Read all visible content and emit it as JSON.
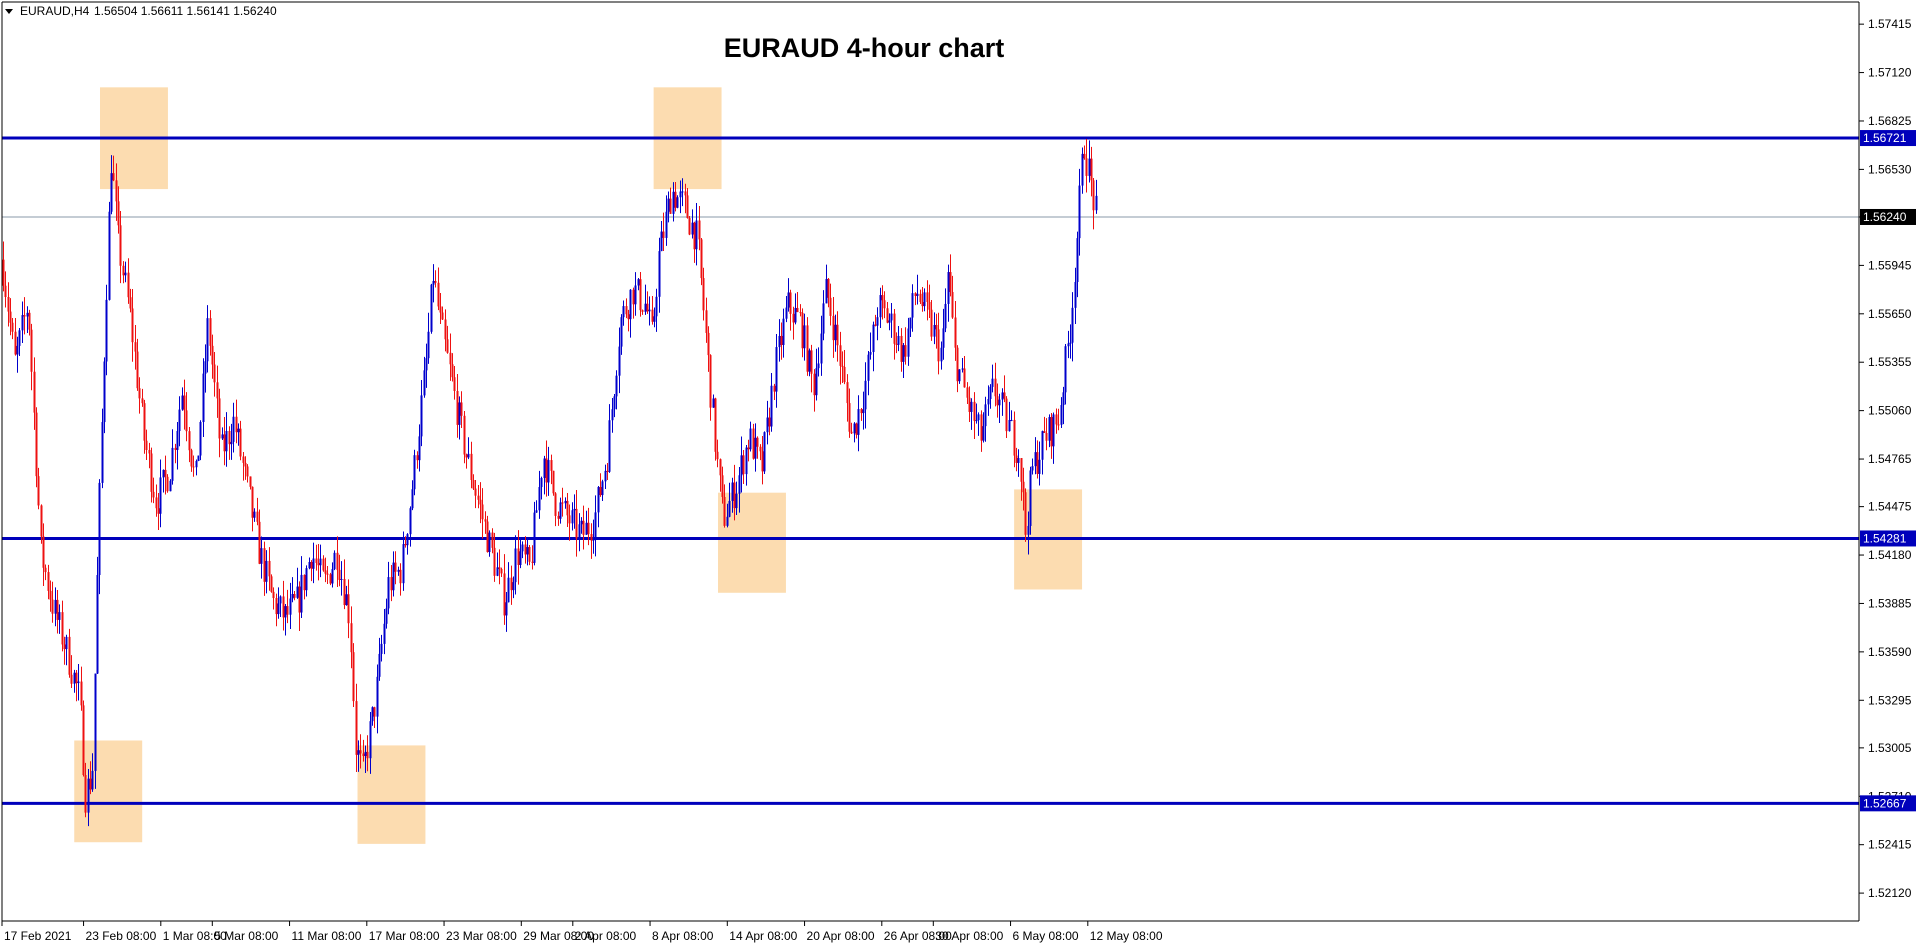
{
  "header": {
    "symbol": "EURAUD,H4",
    "ohlc": "1.56504 1.56611 1.56141 1.56240"
  },
  "colors": {
    "bull": "#0000cc",
    "bear": "#ee1111",
    "level_line": "#0000bb",
    "zone": "#fcdcb0",
    "current_line": "#8899aa",
    "axis": "#000000"
  },
  "chart_data": {
    "type": "candlestick",
    "title": "EURAUD 4-hour chart",
    "ylim": [
      1.5195,
      1.5755
    ],
    "y_ticks": [
      "1.57415",
      "1.57120",
      "1.56825",
      "1.56530",
      "1.56240",
      "1.55945",
      "1.55650",
      "1.55355",
      "1.55060",
      "1.54765",
      "1.54475",
      "1.54180",
      "1.53885",
      "1.53590",
      "1.53295",
      "1.53005",
      "1.52710",
      "1.52415",
      "1.52120"
    ],
    "x_ticks": [
      "17 Feb 2021",
      "23 Feb 08:00",
      "1 Mar 08:00",
      "5 Mar 08:00",
      "11 Mar 08:00",
      "17 Mar 08:00",
      "23 Mar 08:00",
      "29 Mar 08:00",
      "2 Apr 08:00",
      "8 Apr 08:00",
      "14 Apr 08:00",
      "20 Apr 08:00",
      "26 Apr 08:00",
      "30 Apr 08:00",
      "6 May 08:00",
      "12 May 08:00"
    ],
    "levels": [
      {
        "value": "1.56721",
        "label": "1.56721"
      },
      {
        "value": "1.54281",
        "label": "1.54281"
      },
      {
        "value": "1.52667",
        "label": "1.52667"
      }
    ],
    "current_price": {
      "value": "1.56240",
      "label": "1.56240"
    },
    "zones": [
      {
        "from": "23 Feb 2021",
        "to": "24 Feb 2021",
        "low": 1.5243,
        "high": 1.5305
      },
      {
        "from": "25 Feb 2021",
        "to": "26 Feb 2021",
        "low": 1.5641,
        "high": 1.5703
      },
      {
        "from": "17 Mar 2021",
        "to": "18 Mar 2021",
        "low": 1.5242,
        "high": 1.5302
      },
      {
        "from": "9 Apr 2021",
        "to": "10 Apr 2021",
        "low": 1.5641,
        "high": 1.5703
      },
      {
        "from": "14 Apr 2021",
        "to": "15 Apr 2021",
        "low": 1.5395,
        "high": 1.5456
      },
      {
        "from": "7 May 2021",
        "to": "8 May 2021",
        "low": 1.5397,
        "high": 1.5458
      }
    ],
    "close_path": [
      {
        "date": "17 Feb 2021",
        "close": 1.5598
      },
      {
        "date": "18 Feb 2021",
        "close": 1.5535
      },
      {
        "date": "19 Feb 2021",
        "close": 1.5572
      },
      {
        "date": "20 Feb 2021",
        "close": 1.542
      },
      {
        "date": "21 Feb 2021",
        "close": 1.5385
      },
      {
        "date": "22 Feb 2021",
        "close": 1.536
      },
      {
        "date": "23 Feb 2021",
        "close": 1.533
      },
      {
        "date": "23 Feb 2021",
        "close": 1.5272
      },
      {
        "date": "24 Feb 2021",
        "close": 1.5285
      },
      {
        "date": "24 Feb 2021",
        "close": 1.543
      },
      {
        "date": "25 Feb 2021",
        "close": 1.556
      },
      {
        "date": "25 Feb 2021",
        "close": 1.566
      },
      {
        "date": "26 Feb 2021",
        "close": 1.561
      },
      {
        "date": "27 Feb 2021",
        "close": 1.556
      },
      {
        "date": "28 Feb 2021",
        "close": 1.549
      },
      {
        "date": "1 Mar 2021",
        "close": 1.545
      },
      {
        "date": "2 Mar 2021",
        "close": 1.547
      },
      {
        "date": "3 Mar 2021",
        "close": 1.552
      },
      {
        "date": "4 Mar 2021",
        "close": 1.546
      },
      {
        "date": "5 Mar 2021",
        "close": 1.556
      },
      {
        "date": "6 Mar 2021",
        "close": 1.548
      },
      {
        "date": "7 Mar 2021",
        "close": 1.55
      },
      {
        "date": "8 Mar 2021",
        "close": 1.546
      },
      {
        "date": "9 Mar 2021",
        "close": 1.542
      },
      {
        "date": "10 Mar 2021",
        "close": 1.539
      },
      {
        "date": "11 Mar 2021",
        "close": 1.538
      },
      {
        "date": "12 Mar 2021",
        "close": 1.539
      },
      {
        "date": "13 Mar 2021",
        "close": 1.542
      },
      {
        "date": "14 Mar 2021",
        "close": 1.54
      },
      {
        "date": "15 Mar 2021",
        "close": 1.542
      },
      {
        "date": "16 Mar 2021",
        "close": 1.538
      },
      {
        "date": "16 Mar 2021",
        "close": 1.53
      },
      {
        "date": "17 Mar 2021",
        "close": 1.5285
      },
      {
        "date": "18 Mar 2021",
        "close": 1.533
      },
      {
        "date": "19 Mar 2021",
        "close": 1.54
      },
      {
        "date": "20 Mar 2021",
        "close": 1.541
      },
      {
        "date": "21 Mar 2021",
        "close": 1.547
      },
      {
        "date": "22 Mar 2021",
        "close": 1.554
      },
      {
        "date": "22 Mar 2021",
        "close": 1.559
      },
      {
        "date": "23 Mar 2021",
        "close": 1.556
      },
      {
        "date": "24 Mar 2021",
        "close": 1.552
      },
      {
        "date": "25 Mar 2021",
        "close": 1.548
      },
      {
        "date": "26 Mar 2021",
        "close": 1.545
      },
      {
        "date": "27 Mar 2021",
        "close": 1.542
      },
      {
        "date": "28 Mar 2021",
        "close": 1.539
      },
      {
        "date": "29 Mar 2021",
        "close": 1.542
      },
      {
        "date": "30 Mar 2021",
        "close": 1.541
      },
      {
        "date": "31 Mar 2021",
        "close": 1.548
      },
      {
        "date": "1 Apr 2021",
        "close": 1.545
      },
      {
        "date": "2 Apr 2021",
        "close": 1.544
      },
      {
        "date": "3 Apr 2021",
        "close": 1.543
      },
      {
        "date": "4 Apr 2021",
        "close": 1.544
      },
      {
        "date": "5 Apr 2021",
        "close": 1.548
      },
      {
        "date": "6 Apr 2021",
        "close": 1.556
      },
      {
        "date": "7 Apr 2021",
        "close": 1.558
      },
      {
        "date": "8 Apr 2021",
        "close": 1.557
      },
      {
        "date": "8 Apr 2021",
        "close": 1.555
      },
      {
        "date": "9 Apr 2021",
        "close": 1.56
      },
      {
        "date": "10 Apr 2021",
        "close": 1.564
      },
      {
        "date": "11 Apr 2021",
        "close": 1.563
      },
      {
        "date": "12 Apr 2021",
        "close": 1.561
      },
      {
        "date": "13 Apr 2021",
        "close": 1.552
      },
      {
        "date": "13 Apr 2021",
        "close": 1.548
      },
      {
        "date": "14 Apr 2021",
        "close": 1.544
      },
      {
        "date": "15 Apr 2021",
        "close": 1.546
      },
      {
        "date": "16 Apr 2021",
        "close": 1.549
      },
      {
        "date": "17 Apr 2021",
        "close": 1.547
      },
      {
        "date": "18 Apr 2021",
        "close": 1.553
      },
      {
        "date": "19 Apr 2021",
        "close": 1.557
      },
      {
        "date": "20 Apr 2021",
        "close": 1.556
      },
      {
        "date": "21 Apr 2021",
        "close": 1.552
      },
      {
        "date": "22 Apr 2021",
        "close": 1.558
      },
      {
        "date": "23 Apr 2021",
        "close": 1.554
      },
      {
        "date": "24 Apr 2021",
        "close": 1.549
      },
      {
        "date": "25 Apr 2021",
        "close": 1.552
      },
      {
        "date": "26 Apr 2021",
        "close": 1.557
      },
      {
        "date": "27 Apr 2021",
        "close": 1.556
      },
      {
        "date": "28 Apr 2021",
        "close": 1.554
      },
      {
        "date": "29 Apr 2021",
        "close": 1.558
      },
      {
        "date": "30 Apr 2021",
        "close": 1.556
      },
      {
        "date": "1 May 2021",
        "close": 1.554
      },
      {
        "date": "1 May 2021",
        "close": 1.559
      },
      {
        "date": "2 May 2021",
        "close": 1.554
      },
      {
        "date": "3 May 2021",
        "close": 1.551
      },
      {
        "date": "4 May 2021",
        "close": 1.549
      },
      {
        "date": "5 May 2021",
        "close": 1.552
      },
      {
        "date": "6 May 2021",
        "close": 1.55
      },
      {
        "date": "7 May 2021",
        "close": 1.548
      },
      {
        "date": "7 May 2021",
        "close": 1.5432
      },
      {
        "date": "8 May 2021",
        "close": 1.547
      },
      {
        "date": "9 May 2021",
        "close": 1.549
      },
      {
        "date": "10 May 2021",
        "close": 1.55
      },
      {
        "date": "11 May 2021",
        "close": 1.556
      },
      {
        "date": "11 May 2021",
        "close": 1.561
      },
      {
        "date": "12 May 2021",
        "close": 1.567
      },
      {
        "date": "13 May 2021",
        "close": 1.5624
      }
    ]
  }
}
